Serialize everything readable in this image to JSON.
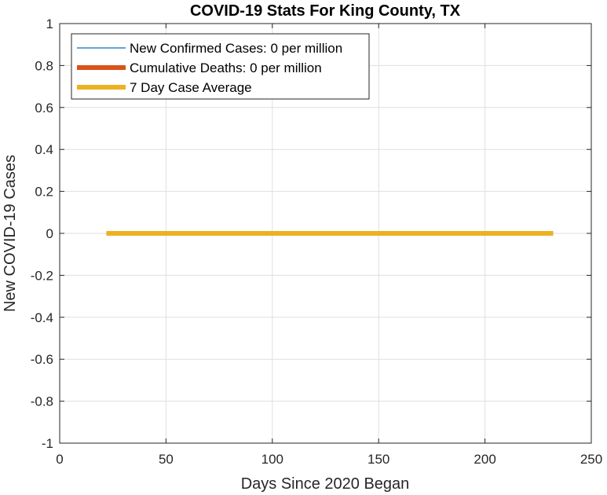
{
  "chart_data": {
    "type": "line",
    "title": "COVID-19 Stats For King County, TX",
    "xlabel": "Days Since 2020 Began",
    "ylabel": "New COVID-19 Cases",
    "xlim": [
      0,
      250
    ],
    "ylim": [
      -1,
      1
    ],
    "xticks": [
      0,
      50,
      100,
      150,
      200,
      250
    ],
    "yticks": [
      -1,
      -0.8,
      -0.6,
      -0.4,
      -0.2,
      0,
      0.2,
      0.4,
      0.6,
      0.8,
      1
    ],
    "xtick_labels": [
      "0",
      "50",
      "100",
      "150",
      "200",
      "250"
    ],
    "ytick_labels": [
      "-1",
      "-0.8",
      "-0.6",
      "-0.4",
      "-0.2",
      "0",
      "0.2",
      "0.4",
      "0.6",
      "0.8",
      "1"
    ],
    "grid": true,
    "legend_position": "top-left",
    "series": [
      {
        "name": "New Confirmed Cases: 0 per million",
        "color": "#0072BD",
        "line_weight": "thin",
        "x": [
          22,
          232
        ],
        "y": [
          0,
          0
        ]
      },
      {
        "name": "Cumulative Deaths: 0 per million",
        "color": "#D95319",
        "line_weight": "thick",
        "x": [
          22,
          232
        ],
        "y": [
          0,
          0
        ]
      },
      {
        "name": "7 Day Case Average",
        "color": "#EDB120",
        "line_weight": "thick",
        "x": [
          22,
          232
        ],
        "y": [
          0,
          0
        ]
      }
    ]
  }
}
